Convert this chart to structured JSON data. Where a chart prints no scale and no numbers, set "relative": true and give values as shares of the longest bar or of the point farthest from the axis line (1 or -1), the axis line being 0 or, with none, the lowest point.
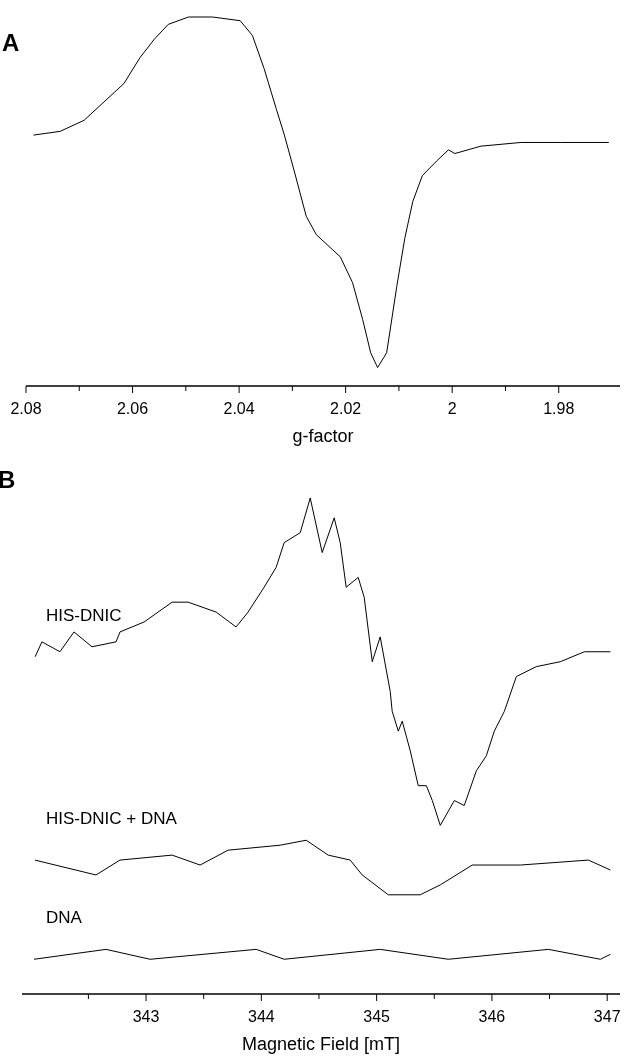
{
  "chart_data": [
    {
      "type": "line",
      "title": "A",
      "xlabel": "g-factor",
      "relative": true,
      "xlim": [
        2.08,
        1.9685
      ],
      "xticks": [
        2.08,
        {
          "value": 2.07,
          "label": null
        },
        2.06,
        {
          "value": 2.05,
          "label": null
        },
        2.04,
        {
          "value": 2.03,
          "label": null
        },
        2.02,
        {
          "value": 2.01,
          "label": null
        },
        2,
        {
          "value": 1.99,
          "label": null
        },
        1.98
      ],
      "series": [
        {
          "color": "#000000",
          "x": [
            2.0786,
            2.0736,
            2.0691,
            2.0646,
            2.0616,
            2.0586,
            2.0559,
            2.0533,
            2.0495,
            2.045,
            2.0398,
            2.0375,
            2.0353,
            2.033,
            2.0315,
            2.0296,
            2.0274,
            2.0255,
            2.021,
            2.0187,
            2.0168,
            2.0153,
            2.014,
            2.0123,
            2.0104,
            2.0089,
            2.0074,
            2.0056,
            2.0029,
            2.0007,
            1.9995,
            1.9946,
            1.9871,
            1.9796,
            1.9706
          ],
          "values": [
            0.68,
            0.69,
            0.72,
            0.78,
            0.82,
            0.89,
            0.94,
            0.98,
            1,
            1,
            0.99,
            0.95,
            0.86,
            0.75,
            0.68,
            0.58,
            0.46,
            0.41,
            0.35,
            0.28,
            0.18,
            0.09,
            0.05,
            0.09,
            0.27,
            0.4,
            0.5,
            0.57,
            0.61,
            0.64,
            0.63,
            0.65,
            0.66,
            0.66,
            0.66
          ]
        }
      ]
    },
    {
      "type": "line",
      "title": "B",
      "xlabel": "Magnetic Field [mT]",
      "relative": true,
      "xlim": [
        341.924,
        347.111
      ],
      "xticks": [
        {
          "value": 342.5,
          "label": null
        },
        343,
        {
          "value": 343.5,
          "label": null
        },
        344,
        {
          "value": 344.5,
          "label": null
        },
        345,
        {
          "value": 345.5,
          "label": null
        },
        346,
        {
          "value": 346.5,
          "label": null
        },
        347
      ],
      "series": [
        {
          "name": "HIS-DNIC",
          "color": "#000000",
          "x": [
            342.038,
            342.097,
            342.253,
            342.375,
            342.531,
            342.74,
            342.774,
            342.983,
            343.226,
            343.365,
            343.608,
            343.781,
            343.885,
            344.024,
            344.128,
            344.198,
            344.337,
            344.424,
            344.528,
            344.632,
            344.684,
            344.736,
            344.84,
            344.892,
            344.962,
            345.031,
            345.118,
            345.135,
            345.188,
            345.222,
            345.292,
            345.361,
            345.431,
            345.483,
            345.552,
            345.674,
            345.76,
            345.865,
            345.951,
            346.021,
            346.108,
            346.212,
            346.385,
            346.594,
            346.802,
            347.028
          ],
          "values": [
            0.68,
            0.71,
            0.69,
            0.73,
            0.7,
            0.71,
            0.73,
            0.75,
            0.79,
            0.79,
            0.77,
            0.74,
            0.77,
            0.82,
            0.86,
            0.91,
            0.93,
            1,
            0.89,
            0.96,
            0.91,
            0.82,
            0.84,
            0.8,
            0.67,
            0.72,
            0.61,
            0.57,
            0.53,
            0.55,
            0.49,
            0.42,
            0.42,
            0.39,
            0.34,
            0.39,
            0.38,
            0.45,
            0.48,
            0.53,
            0.57,
            0.64,
            0.66,
            0.67,
            0.69,
            0.69
          ]
        },
        {
          "name": "HIS-DNIC + DNA",
          "color": "#000000",
          "x": [
            342.036,
            342.566,
            342.774,
            343.226,
            343.469,
            343.712,
            344.163,
            344.389,
            344.58,
            344.771,
            344.875,
            345.101,
            345.378,
            345.552,
            345.83,
            346.247,
            346.837,
            347.028
          ],
          "values": [
            0.27,
            0.24,
            0.27,
            0.28,
            0.26,
            0.29,
            0.3,
            0.31,
            0.28,
            0.27,
            0.24,
            0.2,
            0.2,
            0.22,
            0.26,
            0.26,
            0.27,
            0.25
          ]
        },
        {
          "name": "DNA",
          "color": "#000000",
          "x": [
            342.028,
            342.653,
            343.035,
            343.955,
            344.198,
            345.031,
            345.622,
            346.49,
            346.941,
            347.028
          ],
          "values": [
            0.07,
            0.09,
            0.07,
            0.09,
            0.07,
            0.09,
            0.07,
            0.09,
            0.07,
            0.08
          ]
        }
      ]
    }
  ]
}
